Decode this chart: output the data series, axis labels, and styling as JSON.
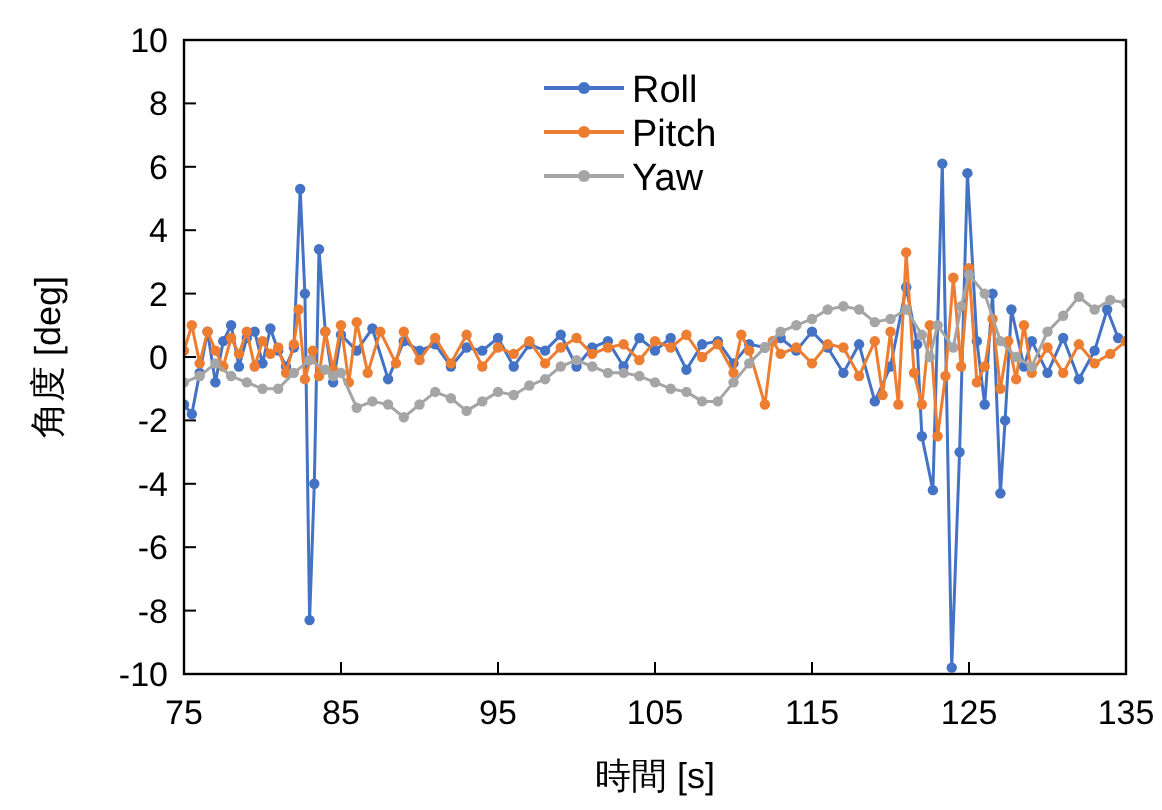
{
  "chart_data": {
    "type": "line",
    "xlabel": "時間 [s]",
    "ylabel": "角度 [deg]",
    "xlim": [
      75,
      135
    ],
    "xticks": [
      75,
      85,
      95,
      105,
      115,
      125,
      135
    ],
    "ylim": [
      -10,
      10
    ],
    "yticks": [
      -10,
      -8,
      -6,
      -4,
      -2,
      0,
      2,
      4,
      6,
      8,
      10
    ],
    "marker": "circle",
    "legend": "top",
    "grid": false,
    "series": [
      {
        "name": "Roll",
        "color": "#4472c4",
        "x": [
          75,
          75.5,
          76,
          76.5,
          77,
          77.5,
          78,
          78.5,
          79,
          79.5,
          80,
          80.5,
          81,
          81.5,
          82,
          82.4,
          82.7,
          83.0,
          83.3,
          83.6,
          84,
          84.5,
          85,
          86,
          87,
          88,
          89,
          90,
          91,
          92,
          93,
          94,
          95,
          96,
          97,
          98,
          99,
          100,
          101,
          102,
          103,
          104,
          105,
          106,
          107,
          108,
          109,
          110,
          111,
          112,
          113,
          114,
          115,
          116,
          117,
          118,
          119,
          120,
          121,
          121.7,
          122,
          122.7,
          123.3,
          123.9,
          124.4,
          124.9,
          125.5,
          126,
          126.5,
          127.0,
          127.3,
          127.7,
          128.5,
          129,
          130,
          131,
          132,
          133,
          133.8,
          134.5,
          135
        ],
        "values": [
          -1.5,
          -1.8,
          -0.5,
          0.8,
          -0.8,
          0.5,
          1.0,
          -0.3,
          0.6,
          0.8,
          -0.2,
          0.9,
          0.2,
          -0.3,
          0.3,
          5.3,
          2,
          -8.3,
          -4,
          3.4,
          0.8,
          -0.8,
          0.7,
          0.2,
          0.9,
          -0.7,
          0.5,
          0.2,
          0.4,
          -0.3,
          0.3,
          0.2,
          0.6,
          -0.3,
          0.4,
          0.2,
          0.7,
          -0.3,
          0.3,
          0.5,
          -0.3,
          0.6,
          0.2,
          0.6,
          -0.4,
          0.4,
          0.5,
          -0.2,
          0.4,
          0.3,
          0.6,
          0.2,
          0.8,
          0.3,
          -0.5,
          0.4,
          -1.4,
          -0.3,
          2.2,
          0.4,
          -2.5,
          -4.2,
          6.1,
          -9.8,
          -3,
          5.8,
          0.5,
          -1.5,
          2,
          -4.3,
          -2,
          1.5,
          -0.3,
          0.5,
          -0.5,
          0.6,
          -0.7,
          0.2,
          1.5,
          0.6,
          0.5
        ]
      },
      {
        "name": "Pitch",
        "color": "#ed7d31",
        "x": [
          75,
          75.5,
          76,
          76.5,
          77,
          77.5,
          78,
          78.5,
          79,
          79.5,
          80,
          80.5,
          81,
          81.5,
          82,
          82.3,
          82.7,
          83.2,
          83.6,
          84,
          84.5,
          85,
          85.5,
          86,
          86.7,
          87.5,
          88.5,
          89,
          90,
          91,
          92,
          93,
          94,
          95,
          96,
          97,
          98,
          99,
          100,
          101,
          102,
          103,
          104,
          105,
          106,
          107,
          108,
          109,
          110,
          110.5,
          111,
          112,
          112.5,
          113,
          114,
          115,
          116,
          117,
          118,
          119,
          119.5,
          120,
          120.5,
          121,
          121.5,
          122,
          122.5,
          123,
          123.5,
          124,
          124.5,
          125,
          125.5,
          126,
          126.5,
          127,
          127.5,
          128,
          128.5,
          129,
          130,
          131,
          132,
          133,
          134,
          135
        ],
        "values": [
          0.2,
          1.0,
          -0.2,
          0.8,
          0.2,
          -0.3,
          0.6,
          0.1,
          0.8,
          -0.3,
          0.5,
          0.1,
          0.3,
          -0.5,
          0.4,
          1.5,
          -0.7,
          0.2,
          -0.6,
          0.8,
          -0.4,
          1.0,
          -0.8,
          1.1,
          -0.5,
          0.8,
          -0.2,
          0.8,
          -0.1,
          0.6,
          -0.2,
          0.7,
          -0.3,
          0.3,
          0.1,
          0.5,
          -0.2,
          0.3,
          0.6,
          0.1,
          0.3,
          0.4,
          -0.1,
          0.5,
          0.3,
          0.7,
          0,
          0.4,
          -0.5,
          0.7,
          0.2,
          -1.5,
          0.5,
          0.1,
          0.3,
          -0.2,
          0.4,
          0.3,
          -0.6,
          0.5,
          -1.2,
          0.8,
          -1.5,
          3.3,
          -0.5,
          -1.5,
          1.0,
          -2.5,
          -0.6,
          2.5,
          -0.3,
          2.8,
          -0.8,
          -0.3,
          1.2,
          -1.0,
          0.5,
          -0.7,
          1.0,
          -0.5,
          0.3,
          -0.5,
          0.4,
          -0.2,
          0.1,
          0.5
        ]
      },
      {
        "name": "Yaw",
        "color": "#a5a5a5",
        "x": [
          75,
          76,
          77,
          78,
          79,
          80,
          81,
          82,
          83,
          84,
          84.5,
          85,
          86,
          87,
          88,
          89,
          90,
          91,
          92,
          93,
          94,
          95,
          96,
          97,
          98,
          99,
          100,
          101,
          102,
          103,
          104,
          105,
          106,
          107,
          108,
          109,
          110,
          111,
          112,
          113,
          114,
          115,
          116,
          117,
          118,
          119,
          120,
          121,
          122,
          122.5,
          123,
          124,
          124.5,
          125,
          126,
          127,
          128,
          129,
          130,
          131,
          132,
          133,
          134,
          135
        ],
        "values": [
          -0.8,
          -0.6,
          -0.2,
          -0.6,
          -0.8,
          -1.0,
          -1.0,
          -0.5,
          -0.1,
          -0.4,
          -0.6,
          -0.5,
          -1.6,
          -1.4,
          -1.5,
          -1.9,
          -1.5,
          -1.1,
          -1.3,
          -1.7,
          -1.4,
          -1.1,
          -1.2,
          -0.9,
          -0.7,
          -0.3,
          -0.1,
          -0.3,
          -0.5,
          -0.5,
          -0.6,
          -0.8,
          -1.0,
          -1.1,
          -1.4,
          -1.4,
          -0.8,
          -0.2,
          0.3,
          0.8,
          1.0,
          1.2,
          1.5,
          1.6,
          1.5,
          1.1,
          1.2,
          1.5,
          0.7,
          0.0,
          1.0,
          0.3,
          1.6,
          2.6,
          2.0,
          0.5,
          0.0,
          -0.3,
          0.8,
          1.3,
          1.9,
          1.5,
          1.8,
          1.7
        ]
      }
    ]
  }
}
